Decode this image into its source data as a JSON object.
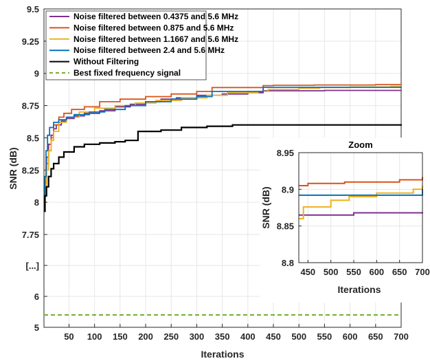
{
  "colors": {
    "purple": "#7E2F8E",
    "orange": "#D95319",
    "yellow": "#EDB120",
    "blue": "#0072BD",
    "black": "#000000",
    "green": "#77AC30",
    "grid": "#E6E6E6"
  },
  "chart_data": [
    {
      "type": "line",
      "xlabel": "Iterations",
      "ylabel": "SNR (dB)",
      "xlim": [
        1,
        700
      ],
      "x_ticks": [
        50,
        100,
        150,
        200,
        250,
        300,
        350,
        400,
        450,
        500,
        550,
        600,
        650,
        700
      ],
      "y_axis_broken": true,
      "y_tick_labels": [
        "5",
        "6",
        "[...]",
        "7.75",
        "8",
        "8.25",
        "8.5",
        "8.75",
        "9",
        "9.25",
        "9.5"
      ],
      "y_range_upper": [
        7.75,
        9.5
      ],
      "y_range_lower": [
        5,
        6
      ],
      "grid": true,
      "legend_position": "top-left",
      "series": [
        {
          "name": "Noise filtered between 0.4375 and 5.6 MHz",
          "color": "purple",
          "style": "step",
          "points": [
            [
              1,
              7.95
            ],
            [
              3,
              8.2
            ],
            [
              6,
              8.35
            ],
            [
              10,
              8.45
            ],
            [
              15,
              8.52
            ],
            [
              20,
              8.57
            ],
            [
              25,
              8.6
            ],
            [
              35,
              8.63
            ],
            [
              45,
              8.65
            ],
            [
              60,
              8.67
            ],
            [
              80,
              8.69
            ],
            [
              110,
              8.71
            ],
            [
              140,
              8.74
            ],
            [
              170,
              8.76
            ],
            [
              200,
              8.78
            ],
            [
              230,
              8.8
            ],
            [
              260,
              8.81
            ],
            [
              300,
              8.83
            ],
            [
              350,
              8.84
            ],
            [
              400,
              8.85
            ],
            [
              430,
              8.865
            ],
            [
              550,
              8.868
            ],
            [
              700,
              8.869
            ]
          ]
        },
        {
          "name": "Noise filtered between 0.875 and 5.6 MHz",
          "color": "orange",
          "style": "step",
          "points": [
            [
              1,
              7.95
            ],
            [
              3,
              8.15
            ],
            [
              6,
              8.3
            ],
            [
              10,
              8.4
            ],
            [
              15,
              8.5
            ],
            [
              20,
              8.6
            ],
            [
              30,
              8.66
            ],
            [
              40,
              8.69
            ],
            [
              55,
              8.72
            ],
            [
              80,
              8.74
            ],
            [
              110,
              8.78
            ],
            [
              150,
              8.8
            ],
            [
              200,
              8.82
            ],
            [
              250,
              8.84
            ],
            [
              300,
              8.86
            ],
            [
              330,
              8.89
            ],
            [
              430,
              8.905
            ],
            [
              450,
              8.908
            ],
            [
              530,
              8.91
            ],
            [
              650,
              8.913
            ],
            [
              700,
              8.917
            ]
          ]
        },
        {
          "name": "Noise filtered between 1.1667 and 5.6 MHz",
          "color": "yellow",
          "style": "step",
          "points": [
            [
              1,
              7.95
            ],
            [
              3,
              8.1
            ],
            [
              6,
              8.25
            ],
            [
              10,
              8.4
            ],
            [
              15,
              8.48
            ],
            [
              20,
              8.55
            ],
            [
              30,
              8.62
            ],
            [
              45,
              8.66
            ],
            [
              70,
              8.7
            ],
            [
              100,
              8.73
            ],
            [
              140,
              8.75
            ],
            [
              180,
              8.77
            ],
            [
              220,
              8.79
            ],
            [
              270,
              8.81
            ],
            [
              320,
              8.83
            ],
            [
              360,
              8.85
            ],
            [
              420,
              8.86
            ],
            [
              440,
              8.876
            ],
            [
              500,
              8.885
            ],
            [
              540,
              8.89
            ],
            [
              600,
              8.895
            ],
            [
              680,
              8.9
            ],
            [
              700,
              8.905
            ]
          ]
        },
        {
          "name": "Noise filtered between 2.4 and 5.6 MHz",
          "color": "blue",
          "style": "step",
          "points": [
            [
              1,
              7.95
            ],
            [
              3,
              8.2
            ],
            [
              5,
              8.4
            ],
            [
              8,
              8.52
            ],
            [
              12,
              8.58
            ],
            [
              20,
              8.62
            ],
            [
              30,
              8.64
            ],
            [
              45,
              8.66
            ],
            [
              60,
              8.68
            ],
            [
              90,
              8.7
            ],
            [
              120,
              8.72
            ],
            [
              160,
              8.75
            ],
            [
              200,
              8.78
            ],
            [
              250,
              8.8
            ],
            [
              300,
              8.82
            ],
            [
              330,
              8.86
            ],
            [
              430,
              8.892
            ],
            [
              690,
              8.892
            ],
            [
              700,
              8.9
            ]
          ]
        },
        {
          "name": "Without Filtering",
          "color": "black",
          "style": "step",
          "points": [
            [
              1,
              7.93
            ],
            [
              3,
              8.05
            ],
            [
              6,
              8.12
            ],
            [
              10,
              8.2
            ],
            [
              15,
              8.26
            ],
            [
              20,
              8.3
            ],
            [
              30,
              8.35
            ],
            [
              40,
              8.39
            ],
            [
              60,
              8.43
            ],
            [
              80,
              8.45
            ],
            [
              110,
              8.46
            ],
            [
              140,
              8.47
            ],
            [
              160,
              8.48
            ],
            [
              185,
              8.55
            ],
            [
              230,
              8.56
            ],
            [
              270,
              8.58
            ],
            [
              320,
              8.59
            ],
            [
              370,
              8.6
            ],
            [
              420,
              8.6
            ],
            [
              500,
              8.6
            ],
            [
              600,
              8.6
            ],
            [
              680,
              8.6
            ],
            [
              700,
              8.605
            ]
          ]
        },
        {
          "name": "Best fixed frequency signal",
          "color": "green",
          "style": "dashed",
          "points": [
            [
              1,
              5.4
            ],
            [
              700,
              5.4
            ]
          ]
        }
      ]
    },
    {
      "type": "line",
      "title": "Zoom",
      "xlabel": "Iterations",
      "ylabel": "SNR (dB)",
      "xlim": [
        430,
        700
      ],
      "ylim": [
        8.8,
        8.95
      ],
      "x_ticks": [
        450,
        500,
        550,
        600,
        650,
        700
      ],
      "y_ticks": [
        8.8,
        8.85,
        8.9,
        8.95
      ],
      "y_tick_labels": [
        "8.8",
        "8.85",
        "8.9",
        "8.95"
      ]
    }
  ]
}
